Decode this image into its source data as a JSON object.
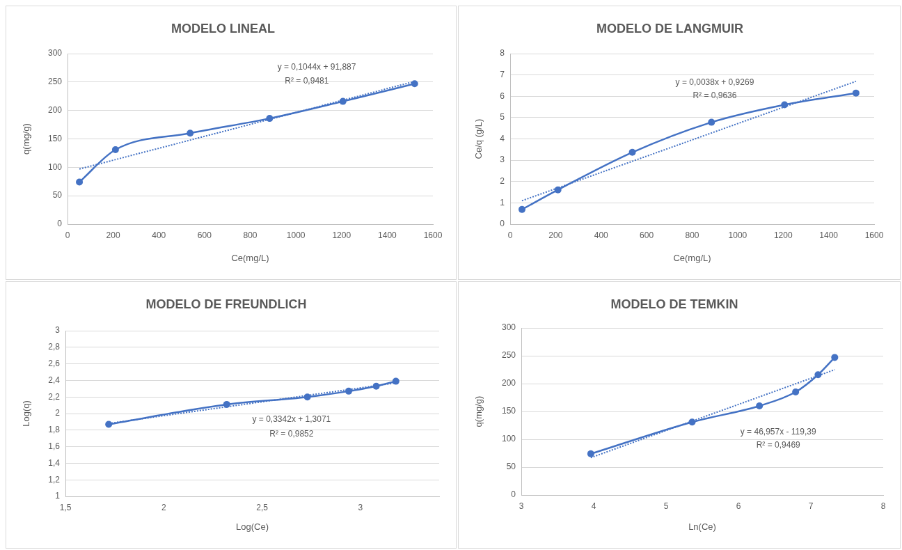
{
  "chart_data": [
    {
      "type": "line",
      "title": "MODELO LINEAL",
      "xlabel": "Ce(mg/L)",
      "ylabel": "q(mg/g)",
      "x": [
        52,
        210,
        537,
        885,
        1206,
        1520
      ],
      "marker": "circle",
      "grid": "y",
      "xlim": [
        0,
        1600
      ],
      "xticks": [
        0,
        200,
        400,
        600,
        800,
        1000,
        1200,
        1400,
        1600
      ],
      "ylim": [
        0,
        300
      ],
      "yticks": [
        0,
        50,
        100,
        150,
        200,
        250,
        300
      ],
      "series": [
        {
          "color": "#4472c4",
          "values": [
            74,
            131,
            160,
            186,
            216,
            247
          ]
        },
        {
          "type": "line",
          "x": [
            52,
            1520
          ],
          "values": [
            97,
            251
          ],
          "color": "#4472c4",
          "line_style": "dotted",
          "marker": "none"
        }
      ],
      "annotations": [
        "y = 0,1044x + 91,887",
        "R² = 0,9481"
      ]
    },
    {
      "type": "line",
      "title": "MODELO DE LANGMUIR",
      "xlabel": "Ce(mg/L)",
      "ylabel": "Ce/q (g/L)",
      "x": [
        52,
        210,
        537,
        885,
        1206,
        1520
      ],
      "marker": "circle",
      "grid": "y",
      "xlim": [
        0,
        1600
      ],
      "xticks": [
        0,
        200,
        400,
        600,
        800,
        1000,
        1200,
        1400,
        1600
      ],
      "ylim": [
        0,
        8
      ],
      "yticks": [
        0,
        1,
        2,
        3,
        4,
        5,
        6,
        7,
        8
      ],
      "series": [
        {
          "color": "#4472c4",
          "values": [
            0.69,
            1.61,
            3.37,
            4.78,
            5.6,
            6.15
          ]
        },
        {
          "type": "line",
          "x": [
            52,
            1520
          ],
          "values": [
            1.1,
            6.7
          ],
          "color": "#4472c4",
          "line_style": "dotted",
          "marker": "none"
        }
      ],
      "annotations": [
        "y = 0,0038x + 0,9269",
        "R² = 0,9636"
      ]
    },
    {
      "type": "line",
      "title": "MODELO DE FREUNDLICH",
      "xlabel": "Log(Ce)",
      "ylabel": "Log(q)",
      "x": [
        1.72,
        2.32,
        2.73,
        2.94,
        3.08,
        3.18
      ],
      "marker": "circle",
      "grid": "y",
      "xlim": [
        1.5,
        3.4
      ],
      "xticks": [
        {
          "value": 1.5,
          "label": "1,5"
        },
        2,
        {
          "value": 2.5,
          "label": "2,5"
        },
        3
      ],
      "ylim": [
        1,
        3
      ],
      "yticks": [
        1,
        {
          "value": 1.2,
          "label": "1,2"
        },
        {
          "value": 1.4,
          "label": "1,4"
        },
        {
          "value": 1.6,
          "label": "1,6"
        },
        {
          "value": 1.8,
          "label": "1,8"
        },
        2,
        {
          "value": 2.2,
          "label": "2,2"
        },
        {
          "value": 2.4,
          "label": "2,4"
        },
        {
          "value": 2.6,
          "label": "2,6"
        },
        {
          "value": 2.8,
          "label": "2,8"
        },
        3
      ],
      "series": [
        {
          "color": "#4472c4",
          "values": [
            1.87,
            2.11,
            2.2,
            2.27,
            2.33,
            2.39
          ]
        },
        {
          "type": "line",
          "x": [
            1.72,
            3.18
          ],
          "values": [
            1.88,
            2.37
          ],
          "color": "#4472c4",
          "line_style": "dotted",
          "marker": "none"
        }
      ],
      "annotations": [
        "y = 0,3342x + 1,3071",
        "R² = 0,9852"
      ]
    },
    {
      "type": "line",
      "title": "MODELO DE TEMKIN",
      "xlabel": "Ln(Ce)",
      "ylabel": "q(mg/g)",
      "x": [
        3.96,
        5.36,
        6.29,
        6.79,
        7.1,
        7.33
      ],
      "marker": "circle",
      "grid": "y",
      "xlim": [
        3,
        8
      ],
      "xticks": [
        3,
        4,
        5,
        6,
        7,
        8
      ],
      "ylim": [
        0,
        300
      ],
      "yticks": [
        0,
        50,
        100,
        150,
        200,
        250,
        300
      ],
      "series": [
        {
          "color": "#4472c4",
          "values": [
            74,
            131,
            160,
            185,
            216,
            247
          ]
        },
        {
          "type": "line",
          "x": [
            3.96,
            7.33
          ],
          "values": [
            67,
            225
          ],
          "color": "#4472c4",
          "line_style": "dotted",
          "marker": "none"
        }
      ],
      "annotations": [
        "y = 46,957x - 119,39",
        "R² = 0,9469"
      ]
    }
  ]
}
